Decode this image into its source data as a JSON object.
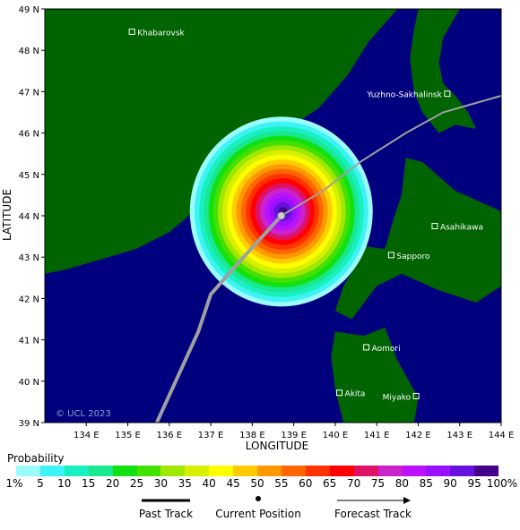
{
  "map": {
    "watermark": "© UCL 2023",
    "x_axis_title": "LONGITUDE",
    "y_axis_title": "LATITUDE",
    "lon_ticks": [
      "134 E",
      "135 E",
      "136 E",
      "137 E",
      "138 E",
      "139 E",
      "140 E",
      "141 E",
      "142 E",
      "143 E",
      "144 E"
    ],
    "lat_ticks": [
      "49 N",
      "48 N",
      "47 N",
      "46 N",
      "45 N",
      "44 N",
      "43 N",
      "42 N",
      "41 N",
      "40 N",
      "39 N"
    ],
    "colors": {
      "ocean": "#00007f",
      "land": "#006400",
      "track": "#a0a0a0"
    },
    "cities": [
      {
        "name": "Khabarovsk",
        "lon": 135.1,
        "lat": 48.45
      },
      {
        "name": "Yuzhno-Sakhalinsk",
        "lon": 142.7,
        "lat": 46.95
      },
      {
        "name": "Asahikawa",
        "lon": 142.4,
        "lat": 43.75
      },
      {
        "name": "Sapporo",
        "lon": 141.35,
        "lat": 43.05
      },
      {
        "name": "Aomori",
        "lon": 140.75,
        "lat": 40.82
      },
      {
        "name": "Akita",
        "lon": 140.1,
        "lat": 39.72
      },
      {
        "name": "Miyako",
        "lon": 141.95,
        "lat": 39.64
      }
    ],
    "current_position": {
      "lon": 138.7,
      "lat": 44.0
    },
    "past_track": [
      [
        135.7,
        39.0
      ],
      [
        136.2,
        40.1
      ],
      [
        136.7,
        41.2
      ],
      [
        137.0,
        42.1
      ],
      [
        137.7,
        42.9
      ],
      [
        138.7,
        44.0
      ]
    ],
    "forecast_track": [
      [
        138.7,
        44.0
      ],
      [
        139.7,
        44.6
      ],
      [
        140.6,
        45.3
      ],
      [
        141.7,
        46.0
      ],
      [
        142.6,
        46.5
      ],
      [
        144.0,
        46.9
      ]
    ]
  },
  "legend": {
    "title": "Probability",
    "labels": [
      "1%",
      "5",
      "10",
      "15",
      "20",
      "25",
      "30",
      "35",
      "40",
      "45",
      "50",
      "55",
      "60",
      "65",
      "70",
      "75",
      "80",
      "85",
      "90",
      "95",
      "100%"
    ],
    "colors": [
      "#9cfbfb",
      "#3ef3f3",
      "#19f0c0",
      "#19e890",
      "#11e011",
      "#44e000",
      "#a0e800",
      "#d8f000",
      "#ffff00",
      "#ffcc00",
      "#ff9900",
      "#ff6600",
      "#ff3300",
      "#ff0000",
      "#dd1166",
      "#cc22cc",
      "#bb11ff",
      "#9911ff",
      "#6611dd",
      "#440088"
    ]
  },
  "track_key": {
    "past": "Past Track",
    "current": "Current Position",
    "forecast": "Forecast Track"
  }
}
